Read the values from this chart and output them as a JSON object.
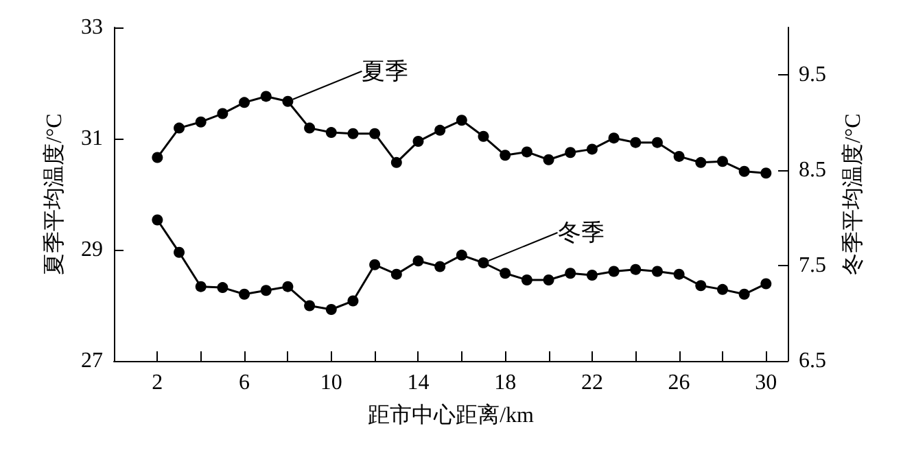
{
  "chart_data": {
    "type": "line",
    "xlabel": "距市中心距离/km",
    "ylabel": "夏季平均温度/°C",
    "y2label": "冬季平均温度/°C",
    "x": [
      2,
      3,
      4,
      5,
      6,
      7,
      8,
      9,
      10,
      11,
      12,
      13,
      14,
      15,
      16,
      17,
      18,
      19,
      20,
      21,
      22,
      23,
      24,
      25,
      26,
      27,
      28,
      29,
      30
    ],
    "series": [
      {
        "name": "夏季",
        "color": "#000000",
        "values": [
          30.66,
          31.19,
          31.3,
          31.45,
          31.65,
          31.76,
          31.67,
          31.19,
          31.11,
          31.09,
          31.09,
          30.57,
          30.95,
          31.15,
          31.33,
          31.04,
          30.7,
          30.76,
          30.62,
          30.75,
          30.81,
          31.01,
          30.93,
          30.93,
          30.68,
          30.57,
          30.59,
          30.41,
          30.38
        ]
      },
      {
        "name": "冬季",
        "color": "#000000",
        "axis": "y2",
        "values": [
          7.98,
          7.64,
          7.28,
          7.27,
          7.2,
          7.24,
          7.28,
          7.08,
          7.04,
          7.13,
          7.51,
          7.41,
          7.55,
          7.49,
          7.61,
          7.53,
          7.42,
          7.35,
          7.35,
          7.42,
          7.4,
          7.44,
          7.46,
          7.44,
          7.41,
          7.29,
          7.25,
          7.2,
          7.31
        ]
      }
    ],
    "xlim": [
      0,
      31
    ],
    "xticks": [
      2,
      {
        "value": 4,
        "label": null
      },
      6,
      {
        "value": 8,
        "label": null
      },
      10,
      {
        "value": 12,
        "label": null
      },
      14,
      {
        "value": 16,
        "label": null
      },
      18,
      {
        "value": 20,
        "label": null
      },
      22,
      {
        "value": 24,
        "label": null
      },
      26,
      {
        "value": 28,
        "label": null
      },
      30
    ],
    "ylim": [
      27,
      33
    ],
    "yticks": [
      27,
      29,
      31,
      33
    ],
    "y2lim": [
      6.5,
      10
    ],
    "y2ticks": [
      6.5,
      7.5,
      8.5,
      9.5
    ],
    "grid": false,
    "legend": "top",
    "marker": "circle",
    "line_style": "solid"
  }
}
